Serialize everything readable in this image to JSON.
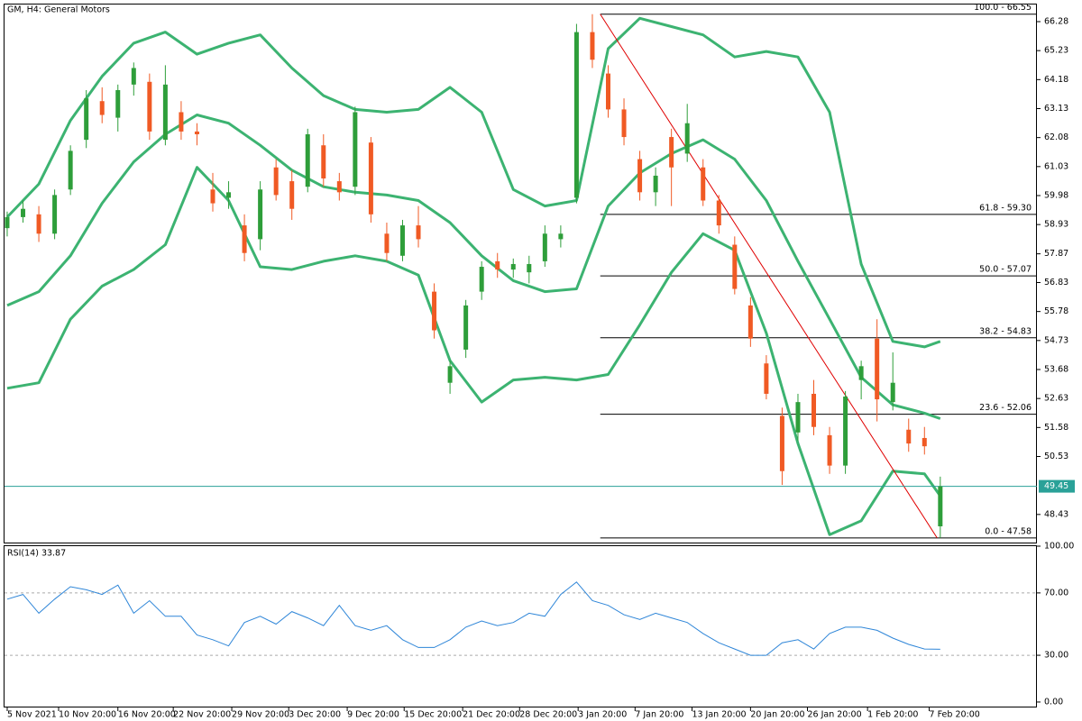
{
  "chart_data": [
    {
      "type": "candlestick",
      "title": "GM, H4:  General Motors",
      "candles": {
        "open": [
          58.8,
          59.2,
          59.3,
          58.6,
          60.2,
          62.0,
          63.4,
          62.8,
          64.0,
          64.1,
          62.0,
          63.0,
          62.3,
          60.2,
          59.9,
          58.9,
          58.4,
          61.0,
          60.5,
          60.3,
          61.8,
          60.5,
          60.3,
          61.9,
          58.6,
          57.8,
          58.9,
          56.5,
          53.2,
          54.4,
          56.5,
          57.6,
          57.3,
          57.2,
          57.6,
          58.4,
          59.9,
          65.9,
          64.4,
          63.1,
          61.3,
          60.1,
          62.1,
          61.5,
          61.0,
          59.8,
          58.2,
          56.0,
          53.9,
          52.0,
          51.4,
          52.8,
          51.3,
          50.2,
          53.3,
          54.8,
          52.5,
          51.5,
          51.2,
          48.0
        ],
        "high": [
          59.4,
          59.8,
          59.6,
          60.2,
          61.8,
          63.8,
          63.9,
          64.0,
          64.8,
          64.4,
          64.7,
          63.4,
          62.6,
          60.8,
          60.5,
          59.3,
          60.5,
          61.3,
          60.9,
          62.4,
          62.2,
          60.8,
          63.2,
          62.1,
          59.0,
          59.1,
          59.6,
          56.8,
          54.0,
          56.2,
          57.6,
          57.9,
          57.7,
          57.8,
          58.9,
          58.9,
          66.2,
          66.55,
          64.7,
          63.5,
          61.6,
          61.0,
          62.4,
          63.3,
          61.3,
          60.0,
          58.5,
          56.3,
          54.2,
          52.3,
          52.8,
          53.3,
          51.6,
          52.9,
          54.0,
          55.5,
          54.3,
          51.9,
          51.6,
          49.8
        ],
        "low": [
          58.5,
          59.0,
          58.3,
          58.4,
          60.0,
          61.7,
          62.6,
          62.3,
          63.6,
          62.0,
          61.8,
          62.0,
          61.8,
          59.4,
          59.5,
          57.6,
          58.0,
          59.8,
          59.1,
          60.1,
          60.3,
          59.8,
          60.0,
          59.0,
          57.6,
          57.6,
          58.1,
          54.8,
          52.8,
          54.1,
          56.2,
          57.0,
          57.0,
          56.8,
          57.4,
          58.1,
          59.7,
          64.6,
          62.8,
          61.8,
          59.8,
          59.6,
          59.6,
          61.2,
          59.6,
          58.6,
          56.4,
          54.5,
          52.6,
          49.5,
          51.1,
          51.3,
          49.9,
          49.9,
          52.6,
          51.8,
          52.2,
          50.7,
          50.6,
          47.58
        ],
        "close": [
          59.2,
          59.5,
          58.6,
          60.0,
          61.6,
          63.5,
          62.9,
          63.8,
          64.6,
          62.3,
          64.0,
          62.3,
          62.2,
          59.7,
          60.1,
          57.9,
          60.2,
          60.0,
          59.5,
          62.2,
          60.6,
          60.1,
          63.0,
          59.3,
          57.9,
          58.9,
          58.4,
          55.1,
          53.8,
          56.0,
          57.4,
          57.3,
          57.5,
          57.5,
          58.6,
          58.6,
          65.9,
          64.9,
          63.1,
          62.1,
          60.1,
          60.7,
          61.0,
          62.6,
          59.8,
          58.9,
          56.6,
          54.8,
          52.8,
          50.0,
          52.5,
          51.6,
          50.2,
          52.7,
          53.8,
          52.6,
          53.2,
          51.0,
          50.9,
          49.45
        ]
      },
      "up_color": "#2e9e3a",
      "down_color": "#f05a24",
      "bands_x": [
        0,
        2,
        4,
        6,
        8,
        10,
        12,
        14,
        16,
        18,
        20,
        22,
        24,
        26,
        28,
        30,
        32,
        34,
        36,
        38,
        40,
        42,
        44,
        46,
        48,
        50,
        52,
        54,
        56,
        58,
        59
      ],
      "series": [
        {
          "color": "#3cb371",
          "values": [
            59.2,
            60.4,
            62.7,
            64.3,
            65.5,
            65.9,
            65.1,
            65.5,
            65.8,
            64.6,
            63.6,
            63.1,
            63.0,
            63.1,
            63.9,
            63.0,
            60.2,
            59.6,
            59.8,
            65.3,
            66.4,
            66.1,
            65.8,
            65.0,
            65.2,
            65.0,
            63.0,
            57.5,
            54.7,
            54.5,
            54.7
          ]
        },
        {
          "color": "#3cb371",
          "values": [
            56.0,
            56.5,
            57.8,
            59.7,
            61.2,
            62.2,
            62.9,
            62.6,
            61.8,
            60.9,
            60.3,
            60.1,
            60.0,
            59.8,
            59.0,
            57.8,
            56.9,
            56.5,
            56.6,
            59.6,
            60.8,
            61.5,
            62.0,
            61.3,
            59.8,
            57.6,
            55.5,
            53.4,
            52.4,
            52.1,
            51.9
          ]
        },
        {
          "color": "#3cb371",
          "values": [
            53.0,
            53.2,
            55.5,
            56.7,
            57.3,
            58.2,
            61.0,
            59.8,
            57.4,
            57.3,
            57.6,
            57.8,
            57.6,
            57.1,
            54.0,
            52.5,
            53.3,
            53.4,
            53.3,
            53.5,
            55.3,
            57.2,
            58.6,
            58.0,
            55.0,
            51.0,
            47.7,
            48.2,
            50.0,
            49.9,
            49.1
          ]
        }
      ],
      "fib_start_x": 37.5,
      "fib_levels": [
        {
          "label": "100.0 - 66.55",
          "value": 66.55
        },
        {
          "label": "61.8 - 59.30",
          "value": 59.3
        },
        {
          "label": "50.0 - 57.07",
          "value": 57.07
        },
        {
          "label": "38.2 - 54.83",
          "value": 54.83
        },
        {
          "label": "23.6 - 52.06",
          "value": 52.06
        },
        {
          "label": "0.0 - 47.58",
          "value": 47.58
        }
      ],
      "trend_line": {
        "x": [
          37.5,
          58.8
        ],
        "values": [
          66.55,
          47.58
        ],
        "color": "#e00000"
      },
      "current_price": 49.45,
      "current_color": "#2aa198",
      "xlim": [
        -0.17,
        65.11
      ],
      "ylim": [
        47.38,
        66.9
      ],
      "yticks": [
        66.28,
        65.23,
        64.18,
        63.13,
        62.08,
        61.03,
        59.98,
        58.93,
        57.87,
        56.83,
        55.78,
        54.73,
        53.68,
        52.63,
        51.58,
        50.53,
        48.43
      ],
      "xticks": [
        {
          "value": 0,
          "label": "5 Nov 2021"
        },
        {
          "value": 3.25,
          "label": "10 Nov 20:00"
        },
        {
          "value": 7.0,
          "label": "16 Nov 20:00"
        },
        {
          "value": 10.5,
          "label": "22 Nov 20:00"
        },
        {
          "value": 14.2,
          "label": "29 Nov 20:00"
        },
        {
          "value": 17.8,
          "label": "3 Dec 20:00"
        },
        {
          "value": 21.5,
          "label": "9 Dec 20:00"
        },
        {
          "value": 25.1,
          "label": "15 Dec 20:00"
        },
        {
          "value": 28.8,
          "label": "21 Dec 20:00"
        },
        {
          "value": 32.4,
          "label": "28 Dec 20:00"
        },
        {
          "value": 36.1,
          "label": "3 Jan 20:00"
        },
        {
          "value": 39.7,
          "label": "7 Jan 20:00"
        },
        {
          "value": 43.3,
          "label": "13 Jan 20:00"
        },
        {
          "value": 47.0,
          "label": "20 Jan 20:00"
        },
        {
          "value": 50.6,
          "label": "26 Jan 20:00"
        },
        {
          "value": 54.4,
          "label": "1 Feb 20:00"
        },
        {
          "value": 58.3,
          "label": "7 Feb 20:00"
        }
      ]
    },
    {
      "type": "line",
      "title": "RSI(14) 33.87",
      "color": "#2f86d8",
      "values": [
        66,
        69,
        57,
        66,
        74,
        72,
        69,
        75,
        57,
        65,
        55,
        55,
        43,
        40,
        36,
        51,
        55,
        50,
        58,
        54,
        49,
        62,
        49,
        46,
        49,
        40,
        35,
        35,
        40,
        48,
        52,
        49,
        51,
        57,
        55,
        69,
        77,
        65,
        62,
        56,
        53,
        57,
        54,
        51,
        44,
        38,
        34,
        30,
        30,
        38,
        40,
        34,
        44,
        48,
        48,
        46,
        41,
        37,
        34,
        33.87
      ],
      "ylim": [
        -3.5,
        100
      ],
      "yticks": [
        {
          "value": 100,
          "label": "100.00"
        },
        {
          "value": 70,
          "label": "70.00"
        },
        {
          "value": 30,
          "label": "30.00"
        },
        {
          "value": 0,
          "label": "0.00"
        }
      ],
      "dashed_levels": [
        70,
        30
      ]
    }
  ]
}
